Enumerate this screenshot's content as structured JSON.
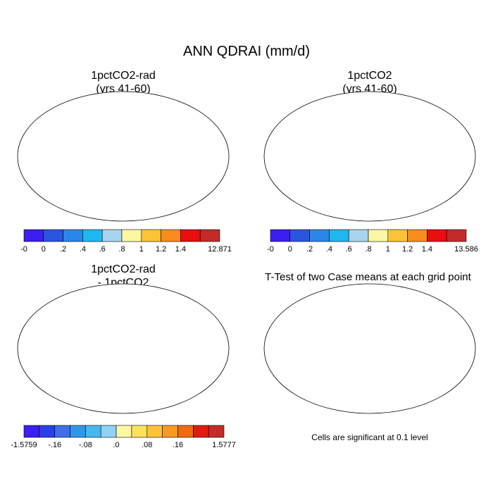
{
  "figure": {
    "title": "ANN QDRAI (mm/d)",
    "panels": [
      {
        "line1": "1pctCO2-rad",
        "line2": "(yrs 41-60)"
      },
      {
        "line1": "1pctCO2",
        "line2": "(yrs 41-60)"
      },
      {
        "line1": "1pctCO2-rad",
        "line2": "- 1pctCO2"
      },
      {
        "line1": "T-Test of two Case means at each grid point",
        "line2": ""
      }
    ],
    "significance_note": "Cells are significant at 0.1 level"
  },
  "colorbars": [
    {
      "colors": [
        "#3b1ef0",
        "#2a55e0",
        "#2b86e8",
        "#1fb8ee",
        "#a9d4ee",
        "#fdf7a3",
        "#fdc336",
        "#fa8c1e",
        "#ea0e0e",
        "#c42a2a"
      ],
      "labels": [
        "-0",
        "0",
        ".2",
        ".4",
        ".6",
        ".8",
        "1",
        "1.2",
        "1.4",
        "12.871"
      ]
    },
    {
      "colors": [
        "#3b1ef0",
        "#2a55e0",
        "#2b86e8",
        "#1fb8ee",
        "#a9d4ee",
        "#fdf7a3",
        "#fdc336",
        "#fa8c1e",
        "#ea0e0e",
        "#c42a2a"
      ],
      "labels": [
        "-0",
        "0",
        ".2",
        ".4",
        ".6",
        ".8",
        "1",
        "1.2",
        "1.4",
        "13.586"
      ]
    },
    {
      "colors": [
        "#3b1ef0",
        "#2a3fe6",
        "#3f6ee8",
        "#2d98ea",
        "#47b8f0",
        "#8fd2f6",
        "#fdf7a3",
        "#fde25c",
        "#fdc336",
        "#fa9a1e",
        "#f06a12",
        "#e21a10",
        "#c42a2a"
      ],
      "labels": [
        "-1.5759",
        "-.16",
        "-.08",
        ".0",
        ".08",
        ".16",
        "1.5777"
      ],
      "label_slots": [
        0,
        2,
        4,
        6,
        8,
        10,
        13
      ]
    }
  ],
  "map_colors": {
    "ocean": "#ffffff",
    "low": "#2a55e0",
    "mid": "#fdc336",
    "high": "#ea0e0e",
    "diff_neutral": "#fdf7a3",
    "signif": "#e01010"
  }
}
